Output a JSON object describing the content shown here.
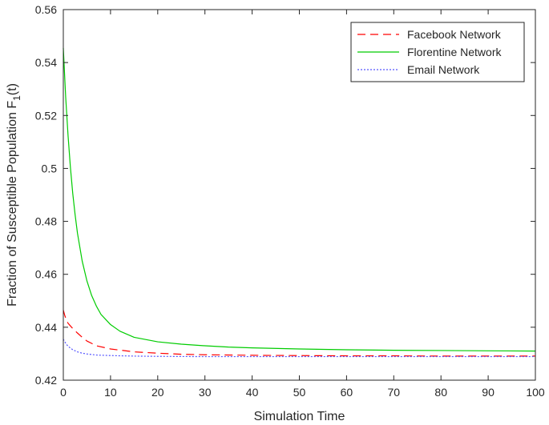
{
  "chart_data": {
    "type": "line",
    "xlabel": "Simulation Time",
    "ylabel": "Fraction of Susceptible Population F",
    "ylabel_subscript": "1",
    "ylabel_suffix": "(t)",
    "xlim": [
      0,
      100
    ],
    "ylim": [
      0.42,
      0.56
    ],
    "xticks": [
      0,
      10,
      20,
      30,
      40,
      50,
      60,
      70,
      80,
      90,
      100
    ],
    "yticks": [
      0.42,
      0.44,
      0.46,
      0.48,
      0.5,
      0.52,
      0.54,
      0.56
    ],
    "xtick_labels": [
      "0",
      "10",
      "20",
      "30",
      "40",
      "50",
      "60",
      "70",
      "80",
      "90",
      "100"
    ],
    "ytick_labels": [
      "0.42",
      "0.44",
      "0.46",
      "0.48",
      "0.5",
      "0.52",
      "0.54",
      "0.56"
    ],
    "grid": false,
    "legend_position": "top-right",
    "series": [
      {
        "name": "Facebook Network",
        "color": "#ff0000",
        "style": "dashed",
        "x": [
          0,
          0.3,
          0.7,
          1,
          1.5,
          2,
          3,
          4,
          5,
          7,
          10,
          15,
          20,
          25,
          30,
          40,
          50,
          60,
          70,
          80,
          90,
          100
        ],
        "y": [
          0.4465,
          0.4445,
          0.4425,
          0.4415,
          0.4405,
          0.4395,
          0.4378,
          0.4362,
          0.4348,
          0.433,
          0.4318,
          0.4307,
          0.4302,
          0.4298,
          0.4296,
          0.4294,
          0.4293,
          0.4292,
          0.4292,
          0.4291,
          0.4291,
          0.4291
        ]
      },
      {
        "name": "Florentine Network",
        "color": "#00cc00",
        "style": "solid",
        "x": [
          0,
          0.2,
          0.5,
          1,
          1.5,
          2,
          2.5,
          3,
          4,
          5,
          6,
          7,
          8,
          10,
          12,
          15,
          20,
          25,
          30,
          35,
          40,
          50,
          60,
          70,
          80,
          90,
          100
        ],
        "y": [
          0.5455,
          0.538,
          0.527,
          0.5125,
          0.5005,
          0.4905,
          0.4825,
          0.4755,
          0.465,
          0.4575,
          0.452,
          0.448,
          0.4448,
          0.441,
          0.4385,
          0.4362,
          0.4345,
          0.4336,
          0.433,
          0.4325,
          0.4322,
          0.4318,
          0.4315,
          0.4313,
          0.4312,
          0.4311,
          0.431
        ]
      },
      {
        "name": "Email Network",
        "color": "#5555ff",
        "style": "dotted",
        "x": [
          0,
          0.3,
          0.7,
          1,
          2,
          3,
          4,
          5,
          7,
          10,
          15,
          20,
          30,
          40,
          50,
          60,
          70,
          80,
          90,
          100
        ],
        "y": [
          0.4355,
          0.4345,
          0.4335,
          0.4328,
          0.4315,
          0.4307,
          0.4302,
          0.4299,
          0.4295,
          0.4293,
          0.4291,
          0.429,
          0.4289,
          0.4289,
          0.4289,
          0.4289,
          0.4289,
          0.4289,
          0.4289,
          0.4289
        ]
      }
    ]
  }
}
